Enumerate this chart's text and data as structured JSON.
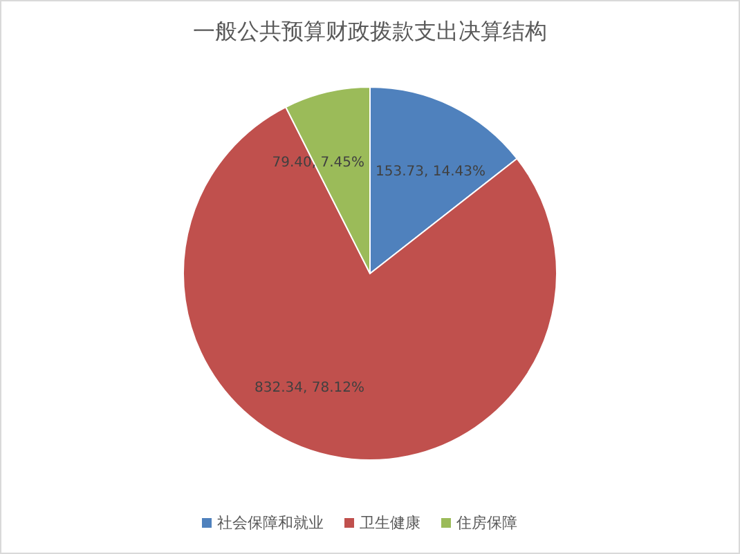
{
  "chart_data": {
    "type": "pie",
    "title": "一般公共预算财政拨款支出决算结构",
    "categories": [
      "社会保障和就业",
      "卫生健康",
      "住房保障"
    ],
    "values": [
      153.73,
      832.34,
      79.4
    ],
    "colors": [
      "#4f81bd",
      "#c0504d",
      "#9bbb59"
    ],
    "value_labels": [
      "153.73, 14.43%",
      "832.34, 78.12%",
      "79.40, 7.45%"
    ],
    "legend": "bottom"
  }
}
